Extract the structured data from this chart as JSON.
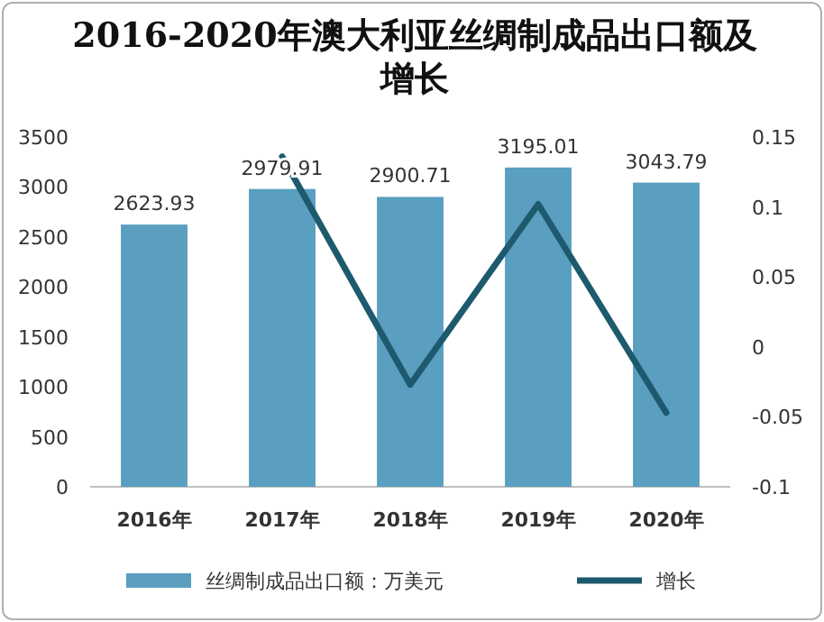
{
  "chart_data": {
    "type": "bar",
    "title": "2016-2020年澳大利亚丝绸制成品出口额及增长",
    "categories": [
      "2016年",
      "2017年",
      "2018年",
      "2019年",
      "2020年"
    ],
    "series": [
      {
        "name": "丝绸制成品出口额：万美元",
        "color": "#5a9ec0",
        "values": [
          2623.93,
          2979.91,
          2900.71,
          3195.01,
          3043.79
        ],
        "value_labels": [
          "2623.93",
          "2979.91",
          "2900.71",
          "3195.01",
          "3043.79"
        ]
      },
      {
        "name": "增长",
        "type": "line",
        "axis": "y2",
        "color": "#1d5a6e",
        "values": [
          null,
          0.136,
          -0.027,
          0.102,
          -0.047
        ]
      }
    ],
    "ylim": [
      0,
      3500
    ],
    "yticks": [
      0,
      500,
      1000,
      1500,
      2000,
      2500,
      3000,
      3500
    ],
    "y2lim": [
      -0.1,
      0.15
    ],
    "y2ticks": [
      -0.1,
      -0.05,
      0,
      0.05,
      0.1,
      0.15
    ],
    "legend": "bottom",
    "grid": false,
    "marker": "none",
    "line_style": "solid"
  }
}
